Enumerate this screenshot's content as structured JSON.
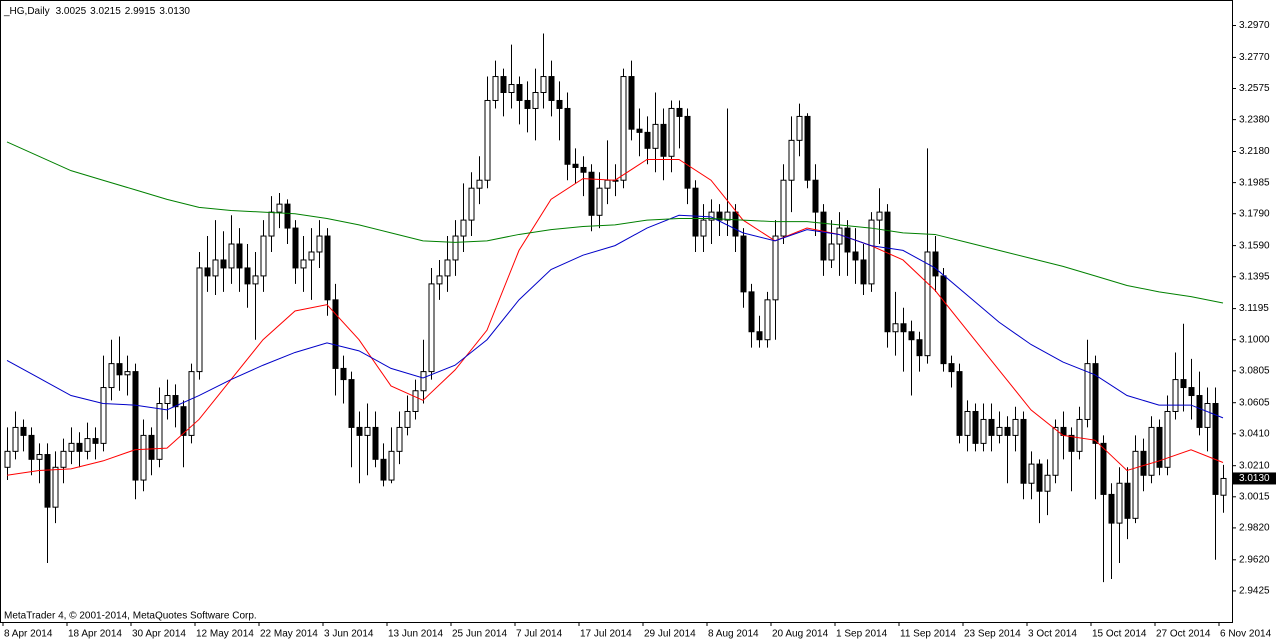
{
  "chart_data": {
    "type": "candlestick",
    "title": "_HG,Daily",
    "ohlc_labels": [
      "3.0025",
      "3.0215",
      "2.9915",
      "3.0130"
    ],
    "footer": "MetaTrader 4, © 2001-2014, MetaQuotes Software Corp.",
    "up_color": "#ffffff",
    "down_color": "#000000",
    "grid": false,
    "ylim": [
      2.923,
      3.313
    ],
    "yticks": [
      {
        "value": 3.297,
        "label": "3.2970"
      },
      {
        "value": 3.277,
        "label": "3.2770"
      },
      {
        "value": 3.2575,
        "label": "3.2575"
      },
      {
        "value": 3.238,
        "label": "3.2380"
      },
      {
        "value": 3.218,
        "label": "3.2180"
      },
      {
        "value": 3.1985,
        "label": "3.1985"
      },
      {
        "value": 3.179,
        "label": "3.1790"
      },
      {
        "value": 3.159,
        "label": "3.1590"
      },
      {
        "value": 3.1395,
        "label": "3.1395"
      },
      {
        "value": 3.1195,
        "label": "3.1195"
      },
      {
        "value": 3.1,
        "label": "3.1000"
      },
      {
        "value": 3.0805,
        "label": "3.0805"
      },
      {
        "value": 3.0605,
        "label": "3.0605"
      },
      {
        "value": 3.041,
        "label": "3.0410"
      },
      {
        "value": 3.021,
        "label": "3.0210"
      },
      {
        "value": 3.0015,
        "label": "3.0015"
      },
      {
        "value": 2.982,
        "label": "2.9820"
      },
      {
        "value": 2.962,
        "label": "2.9620"
      },
      {
        "value": 2.9425,
        "label": "2.9425"
      }
    ],
    "categories": [
      "8 Apr 2014",
      null,
      null,
      null,
      null,
      null,
      null,
      null,
      "18 Apr 2014",
      null,
      null,
      null,
      null,
      null,
      null,
      null,
      "30 Apr 2014",
      null,
      null,
      null,
      null,
      null,
      null,
      null,
      "12 May 2014",
      null,
      null,
      null,
      null,
      null,
      null,
      null,
      "22 May 2014",
      null,
      null,
      null,
      null,
      null,
      null,
      null,
      "3 Jun 2014",
      null,
      null,
      null,
      null,
      null,
      null,
      null,
      "13 Jun 2014",
      null,
      null,
      null,
      null,
      null,
      null,
      null,
      "25 Jun 2014",
      null,
      null,
      null,
      null,
      null,
      null,
      null,
      "7 Jul 2014",
      null,
      null,
      null,
      null,
      null,
      null,
      null,
      "17 Jul 2014",
      null,
      null,
      null,
      null,
      null,
      null,
      null,
      "29 Jul 2014",
      null,
      null,
      null,
      null,
      null,
      null,
      null,
      "8 Aug 2014",
      null,
      null,
      null,
      null,
      null,
      null,
      null,
      "20 Aug 2014",
      null,
      null,
      null,
      null,
      null,
      null,
      null,
      "1 Sep 2014",
      null,
      null,
      null,
      null,
      null,
      null,
      null,
      "11 Sep 2014",
      null,
      null,
      null,
      null,
      null,
      null,
      null,
      "23 Sep 2014",
      null,
      null,
      null,
      null,
      null,
      null,
      null,
      "3 Oct 2014",
      null,
      null,
      null,
      null,
      null,
      null,
      null,
      "15 Oct 2014",
      null,
      null,
      null,
      null,
      null,
      null,
      null,
      "27 Oct 2014",
      null,
      null,
      null,
      null,
      null,
      null,
      null,
      "6 Nov 2014"
    ],
    "open": [
      3.02,
      3.03,
      3.045,
      3.04,
      3.025,
      3.028,
      2.995,
      3.02,
      3.03,
      3.035,
      3.03,
      3.038,
      3.035,
      3.07,
      3.085,
      3.078,
      3.08,
      3.012,
      3.04,
      3.025,
      3.06,
      3.065,
      3.058,
      3.04,
      3.08,
      3.145,
      3.14,
      3.15,
      3.145,
      3.16,
      3.145,
      3.135,
      3.14,
      3.165,
      3.18,
      3.185,
      3.17,
      3.145,
      3.15,
      3.155,
      3.165,
      3.125,
      3.082,
      3.075,
      3.045,
      3.04,
      3.045,
      3.025,
      3.012,
      3.03,
      3.045,
      3.055,
      3.068,
      3.08,
      3.135,
      3.14,
      3.15,
      3.165,
      3.175,
      3.195,
      3.2,
      3.25,
      3.265,
      3.255,
      3.26,
      3.25,
      3.245,
      3.255,
      3.265,
      3.25,
      3.245,
      3.21,
      3.208,
      3.205,
      3.178,
      3.195,
      3.2,
      3.2,
      3.265,
      3.232,
      3.23,
      3.22,
      3.235,
      3.215,
      3.245,
      3.24,
      3.195,
      3.165,
      3.175,
      3.18,
      3.175,
      3.18,
      3.165,
      3.13,
      3.105,
      3.1,
      3.125,
      3.165,
      3.2,
      3.225,
      3.24,
      3.2,
      3.18,
      3.15,
      3.16,
      3.17,
      3.155,
      3.15,
      3.135,
      3.175,
      3.18,
      3.105,
      3.11,
      3.105,
      3.1,
      3.09,
      3.155,
      3.14,
      3.085,
      3.08,
      3.04,
      3.055,
      3.035,
      3.05,
      3.04,
      3.045,
      3.04,
      3.05,
      3.01,
      3.022,
      3.005,
      3.015,
      3.045,
      3.04,
      3.03,
      3.05,
      3.085,
      3.035,
      3.003,
      2.985,
      3.01,
      2.988,
      3.03,
      3.015,
      3.045,
      3.02,
      3.055,
      3.075,
      3.07,
      3.065,
      3.045,
      3.06,
      3.0025
    ],
    "high": [
      3.045,
      3.055,
      3.05,
      3.045,
      3.035,
      3.035,
      3.03,
      3.038,
      3.045,
      3.042,
      3.048,
      3.045,
      3.09,
      3.1,
      3.102,
      3.09,
      3.085,
      3.05,
      3.045,
      3.07,
      3.075,
      3.072,
      3.062,
      3.085,
      3.155,
      3.165,
      3.175,
      3.168,
      3.178,
      3.17,
      3.16,
      3.155,
      3.175,
      3.19,
      3.192,
      3.188,
      3.175,
      3.165,
      3.17,
      3.175,
      3.17,
      3.135,
      3.09,
      3.08,
      3.055,
      3.06,
      3.055,
      3.035,
      3.045,
      3.055,
      3.065,
      3.075,
      3.1,
      3.145,
      3.15,
      3.165,
      3.175,
      3.198,
      3.205,
      3.215,
      3.265,
      3.275,
      3.27,
      3.285,
      3.265,
      3.262,
      3.27,
      3.292,
      3.275,
      3.262,
      3.255,
      3.22,
      3.215,
      3.21,
      3.205,
      3.225,
      3.21,
      3.27,
      3.275,
      3.245,
      3.24,
      3.255,
      3.245,
      3.25,
      3.25,
      3.245,
      3.2,
      3.185,
      3.188,
      3.185,
      3.245,
      3.185,
      3.17,
      3.135,
      3.115,
      3.13,
      3.175,
      3.21,
      3.24,
      3.248,
      3.242,
      3.21,
      3.185,
      3.175,
      3.18,
      3.175,
      3.17,
      3.16,
      3.18,
      3.195,
      3.185,
      3.13,
      3.12,
      3.112,
      3.105,
      3.22,
      3.165,
      3.145,
      3.09,
      3.085,
      3.062,
      3.06,
      3.06,
      3.06,
      3.055,
      3.052,
      3.058,
      3.055,
      3.03,
      3.025,
      3.025,
      3.05,
      3.055,
      3.045,
      3.058,
      3.1,
      3.09,
      3.04,
      3.01,
      3.02,
      3.02,
      3.04,
      3.038,
      3.052,
      3.05,
      3.065,
      3.092,
      3.11,
      3.088,
      3.08,
      3.07,
      3.07,
      3.0215
    ],
    "low": [
      3.012,
      3.025,
      3.03,
      3.015,
      3.01,
      2.96,
      2.985,
      3.01,
      3.022,
      3.02,
      3.025,
      3.025,
      3.03,
      3.062,
      3.068,
      3.065,
      3.0,
      3.005,
      3.015,
      3.02,
      3.05,
      3.045,
      3.02,
      3.035,
      3.075,
      3.13,
      3.128,
      3.13,
      3.135,
      3.13,
      3.12,
      3.1,
      3.13,
      3.155,
      3.17,
      3.16,
      3.135,
      3.13,
      3.125,
      3.145,
      3.115,
      3.065,
      3.06,
      3.02,
      3.01,
      3.015,
      3.02,
      3.008,
      3.01,
      3.022,
      3.04,
      3.05,
      3.06,
      3.075,
      3.125,
      3.13,
      3.14,
      3.155,
      3.165,
      3.185,
      3.195,
      3.245,
      3.24,
      3.245,
      3.235,
      3.23,
      3.225,
      3.245,
      3.24,
      3.225,
      3.2,
      3.198,
      3.19,
      3.168,
      3.17,
      3.185,
      3.19,
      3.195,
      3.225,
      3.215,
      3.21,
      3.205,
      3.2,
      3.205,
      3.22,
      3.185,
      3.155,
      3.155,
      3.16,
      3.165,
      3.165,
      3.155,
      3.12,
      3.095,
      3.095,
      3.095,
      3.1,
      3.16,
      3.18,
      3.215,
      3.195,
      3.165,
      3.14,
      3.145,
      3.14,
      3.14,
      3.135,
      3.128,
      3.13,
      3.16,
      3.095,
      3.09,
      3.08,
      3.065,
      3.08,
      3.085,
      3.13,
      3.08,
      3.07,
      3.035,
      3.03,
      3.03,
      3.03,
      3.03,
      3.035,
      3.01,
      3.03,
      3.0,
      3.0,
      2.985,
      2.99,
      3.01,
      3.025,
      3.005,
      3.025,
      3.045,
      3.0,
      2.948,
      2.95,
      2.96,
      2.975,
      2.985,
      3.005,
      3.01,
      3.015,
      3.015,
      3.05,
      3.055,
      3.05,
      3.04,
      3.03,
      2.962,
      2.9915
    ],
    "close": [
      3.03,
      3.045,
      3.04,
      3.025,
      3.028,
      2.995,
      3.02,
      3.03,
      3.035,
      3.03,
      3.038,
      3.035,
      3.07,
      3.085,
      3.078,
      3.08,
      3.012,
      3.04,
      3.025,
      3.06,
      3.065,
      3.058,
      3.04,
      3.08,
      3.145,
      3.14,
      3.15,
      3.145,
      3.16,
      3.145,
      3.135,
      3.14,
      3.165,
      3.18,
      3.185,
      3.17,
      3.145,
      3.15,
      3.155,
      3.165,
      3.125,
      3.082,
      3.075,
      3.045,
      3.04,
      3.045,
      3.025,
      3.012,
      3.03,
      3.045,
      3.055,
      3.068,
      3.08,
      3.135,
      3.14,
      3.15,
      3.165,
      3.175,
      3.195,
      3.2,
      3.25,
      3.265,
      3.255,
      3.26,
      3.25,
      3.245,
      3.255,
      3.265,
      3.25,
      3.245,
      3.21,
      3.208,
      3.205,
      3.178,
      3.195,
      3.2,
      3.2,
      3.265,
      3.232,
      3.23,
      3.22,
      3.235,
      3.215,
      3.245,
      3.24,
      3.195,
      3.165,
      3.175,
      3.18,
      3.175,
      3.18,
      3.165,
      3.13,
      3.105,
      3.1,
      3.125,
      3.165,
      3.2,
      3.225,
      3.24,
      3.2,
      3.18,
      3.15,
      3.16,
      3.17,
      3.155,
      3.15,
      3.135,
      3.175,
      3.18,
      3.105,
      3.11,
      3.105,
      3.1,
      3.09,
      3.155,
      3.14,
      3.085,
      3.08,
      3.04,
      3.055,
      3.035,
      3.05,
      3.04,
      3.045,
      3.04,
      3.05,
      3.01,
      3.022,
      3.005,
      3.015,
      3.045,
      3.04,
      3.03,
      3.05,
      3.085,
      3.035,
      3.003,
      2.985,
      3.01,
      2.988,
      3.03,
      3.015,
      3.045,
      3.02,
      3.055,
      3.075,
      3.07,
      3.065,
      3.045,
      3.06,
      3.003,
      3.013
    ],
    "series": [
      {
        "color": "#ff0000",
        "x": [
          0,
          4,
          8,
          12,
          16,
          20,
          24,
          28,
          32,
          36,
          40,
          44,
          48,
          52,
          56,
          60,
          64,
          68,
          72,
          76,
          80,
          84,
          88,
          92,
          96,
          100,
          104,
          108,
          112,
          116,
          120,
          124,
          128,
          132,
          136,
          140,
          144,
          148,
          152
        ],
        "values": [
          3.015,
          3.018,
          3.019,
          3.024,
          3.031,
          3.032,
          3.05,
          3.075,
          3.1,
          3.118,
          3.122,
          3.1,
          3.071,
          3.062,
          3.081,
          3.106,
          3.156,
          3.188,
          3.201,
          3.2,
          3.213,
          3.213,
          3.2,
          3.175,
          3.162,
          3.17,
          3.166,
          3.159,
          3.15,
          3.131,
          3.106,
          3.081,
          3.056,
          3.04,
          3.037,
          3.018,
          3.024,
          3.031,
          3.023
        ]
      },
      {
        "color": "#0000c8",
        "x": [
          0,
          4,
          8,
          12,
          16,
          20,
          24,
          28,
          32,
          36,
          40,
          44,
          48,
          52,
          56,
          60,
          64,
          68,
          72,
          76,
          80,
          84,
          88,
          92,
          96,
          100,
          104,
          108,
          112,
          116,
          120,
          124,
          128,
          132,
          136,
          140,
          144,
          148,
          152
        ],
        "values": [
          3.087,
          3.076,
          3.065,
          3.06,
          3.059,
          3.056,
          3.065,
          3.075,
          3.084,
          3.092,
          3.098,
          3.093,
          3.082,
          3.076,
          3.084,
          3.1,
          3.125,
          3.144,
          3.153,
          3.159,
          3.17,
          3.178,
          3.177,
          3.167,
          3.162,
          3.169,
          3.166,
          3.159,
          3.156,
          3.145,
          3.128,
          3.111,
          3.097,
          3.086,
          3.078,
          3.065,
          3.059,
          3.059,
          3.051
        ]
      },
      {
        "color": "#008000",
        "x": [
          0,
          4,
          8,
          12,
          16,
          20,
          24,
          28,
          32,
          36,
          40,
          44,
          48,
          52,
          56,
          60,
          64,
          68,
          72,
          76,
          80,
          84,
          88,
          92,
          96,
          100,
          104,
          108,
          112,
          116,
          120,
          124,
          128,
          132,
          136,
          140,
          144,
          148,
          152
        ],
        "values": [
          3.224,
          3.215,
          3.206,
          3.2,
          3.194,
          3.188,
          3.183,
          3.181,
          3.18,
          3.179,
          3.176,
          3.172,
          3.167,
          3.162,
          3.161,
          3.162,
          3.166,
          3.169,
          3.171,
          3.172,
          3.175,
          3.176,
          3.176,
          3.175,
          3.174,
          3.174,
          3.172,
          3.17,
          3.167,
          3.166,
          3.161,
          3.156,
          3.151,
          3.146,
          3.14,
          3.134,
          3.13,
          3.127,
          3.123
        ]
      }
    ]
  }
}
